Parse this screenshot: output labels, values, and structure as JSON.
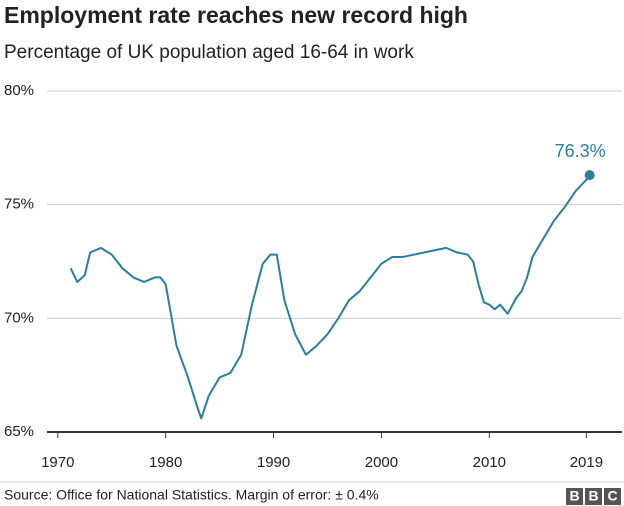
{
  "chart_data": {
    "type": "line",
    "title": "Employment rate reaches new record high",
    "subtitle": "Percentage of UK population aged 16-64 in work",
    "source": "Source: Office for National Statistics. Margin of error: ± 0.4%",
    "logo": [
      "B",
      "B",
      "C"
    ],
    "color": "#2a7f9e",
    "x": [
      1971.2,
      1971.8,
      1972.5,
      1973,
      1974,
      1975,
      1976,
      1977,
      1978,
      1979,
      1979.5,
      1980,
      1981,
      1982,
      1983,
      1983.3,
      1984,
      1985,
      1986,
      1987,
      1988,
      1989,
      1989.7,
      1990.3,
      1991,
      1992,
      1993,
      1994,
      1995,
      1996,
      1997,
      1998,
      1999,
      2000,
      2001,
      2002,
      2003,
      2004,
      2005,
      2006,
      2007,
      2008,
      2008.5,
      2009,
      2009.5,
      2010,
      2010.5,
      2011,
      2011.7,
      2012.5,
      2013,
      2013.5,
      2014,
      2015,
      2016,
      2017,
      2018,
      2019,
      2019.3
    ],
    "values": [
      72.2,
      71.6,
      71.9,
      72.9,
      73.1,
      72.8,
      72.2,
      71.8,
      71.6,
      71.8,
      71.8,
      71.5,
      68.8,
      67.5,
      66.0,
      65.6,
      66.6,
      67.4,
      67.6,
      68.4,
      70.6,
      72.4,
      72.8,
      72.8,
      70.8,
      69.3,
      68.4,
      68.8,
      69.3,
      70.0,
      70.8,
      71.2,
      71.8,
      72.4,
      72.7,
      72.7,
      72.8,
      72.9,
      73.0,
      73.1,
      72.9,
      72.8,
      72.5,
      71.5,
      70.7,
      70.6,
      70.4,
      70.6,
      70.2,
      70.9,
      71.2,
      71.8,
      72.7,
      73.5,
      74.3,
      74.9,
      75.6,
      76.1,
      76.3
    ],
    "value_labels": [
      null,
      null,
      null,
      null,
      null,
      null,
      null,
      null,
      null,
      null,
      null,
      null,
      null,
      null,
      null,
      null,
      null,
      null,
      null,
      null,
      null,
      null,
      null,
      null,
      null,
      null,
      null,
      null,
      null,
      null,
      null,
      null,
      null,
      null,
      null,
      null,
      null,
      null,
      null,
      null,
      null,
      null,
      null,
      null,
      null,
      null,
      null,
      null,
      null,
      null,
      null,
      null,
      null,
      null,
      null,
      null,
      null,
      null,
      "76.3%"
    ],
    "xlim": [
      1969,
      2022.3
    ],
    "xticks": [
      1970,
      1980,
      1990,
      2000,
      2010,
      2019
    ],
    "ylim": [
      65,
      80
    ],
    "yticks": [
      {
        "value": 65,
        "label": "65%"
      },
      {
        "value": 70,
        "label": "70%"
      },
      {
        "value": 75,
        "label": "75%"
      },
      {
        "value": 80,
        "label": "80%"
      }
    ],
    "grid": true
  }
}
